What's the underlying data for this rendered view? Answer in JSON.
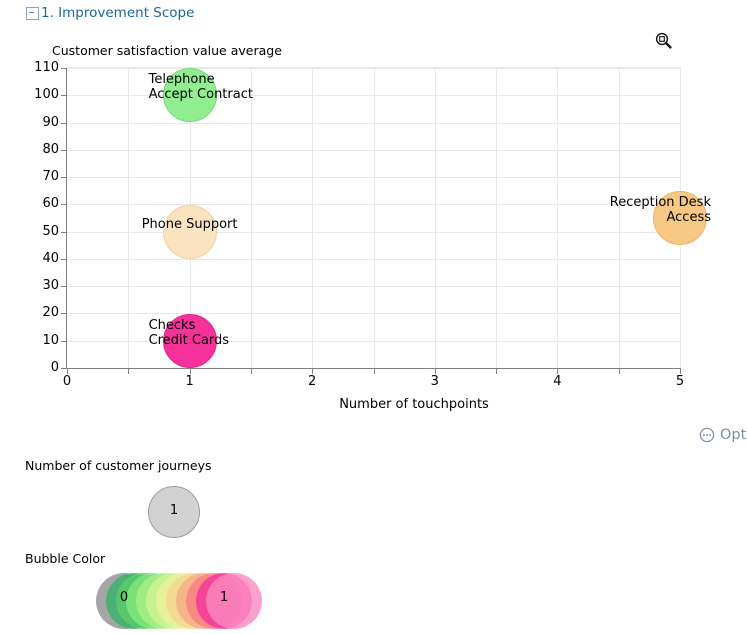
{
  "header": {
    "title": "1. Improvement Scope"
  },
  "chart": {
    "title": "Customer satisfaction value average",
    "options_label": "Opt"
  },
  "chart_data": {
    "type": "bubble",
    "title": "Customer satisfaction value average",
    "xlabel": "Number of touchpoints",
    "ylabel": "Customer satisfaction value average",
    "xlim": [
      0,
      5
    ],
    "ylim": [
      0,
      110
    ],
    "x_major_step": 1,
    "x_minor_step": 0.5,
    "y_step": 10,
    "grid": true,
    "axis_color": "#808080",
    "grid_color": "#e8e8e8",
    "bubbles": [
      {
        "label": [
          "Telephone",
          "Accept Contract"
        ],
        "x": 1,
        "y": 100,
        "size": 1,
        "color": "#90ee90",
        "border": "#79d879",
        "label_align": "left"
      },
      {
        "label": [
          "Phone Support"
        ],
        "x": 1,
        "y": 50,
        "size": 1,
        "color": "#fae3c0",
        "border": "#ecd0a3",
        "label_align": "center"
      },
      {
        "label": [
          "Reception Desk",
          "Access"
        ],
        "x": 5,
        "y": 55,
        "size": 1,
        "color": "#f7c883",
        "border": "#e8b66c",
        "label_align": "right"
      },
      {
        "label": [
          "Checks",
          "Credit Cards"
        ],
        "x": 1,
        "y": 10,
        "size": 1,
        "color": "#f5319b",
        "border": "#e02688",
        "label_align": "left"
      }
    ]
  },
  "legends": {
    "size_legend": {
      "title": "Number of customer journeys",
      "items": [
        {
          "value": "1",
          "color": "#d2d2d2",
          "border": "#9b9b9b"
        }
      ]
    },
    "color_legend": {
      "title": "Bubble Color",
      "min_label": "0",
      "max_label": "1",
      "colors": [
        "#8e8e8e",
        "#36b269",
        "#5bcd69",
        "#82e77b",
        "#a9ef88",
        "#d0f494",
        "#eef09e",
        "#f6d492",
        "#f8ad86",
        "#f87f84",
        "#f5309b",
        "#fb8ac0"
      ]
    }
  },
  "icons": {
    "collapse": "minus-box-icon",
    "zoom": "magnifier-zoom-icon",
    "options": "ellipsis-circle-icon"
  }
}
